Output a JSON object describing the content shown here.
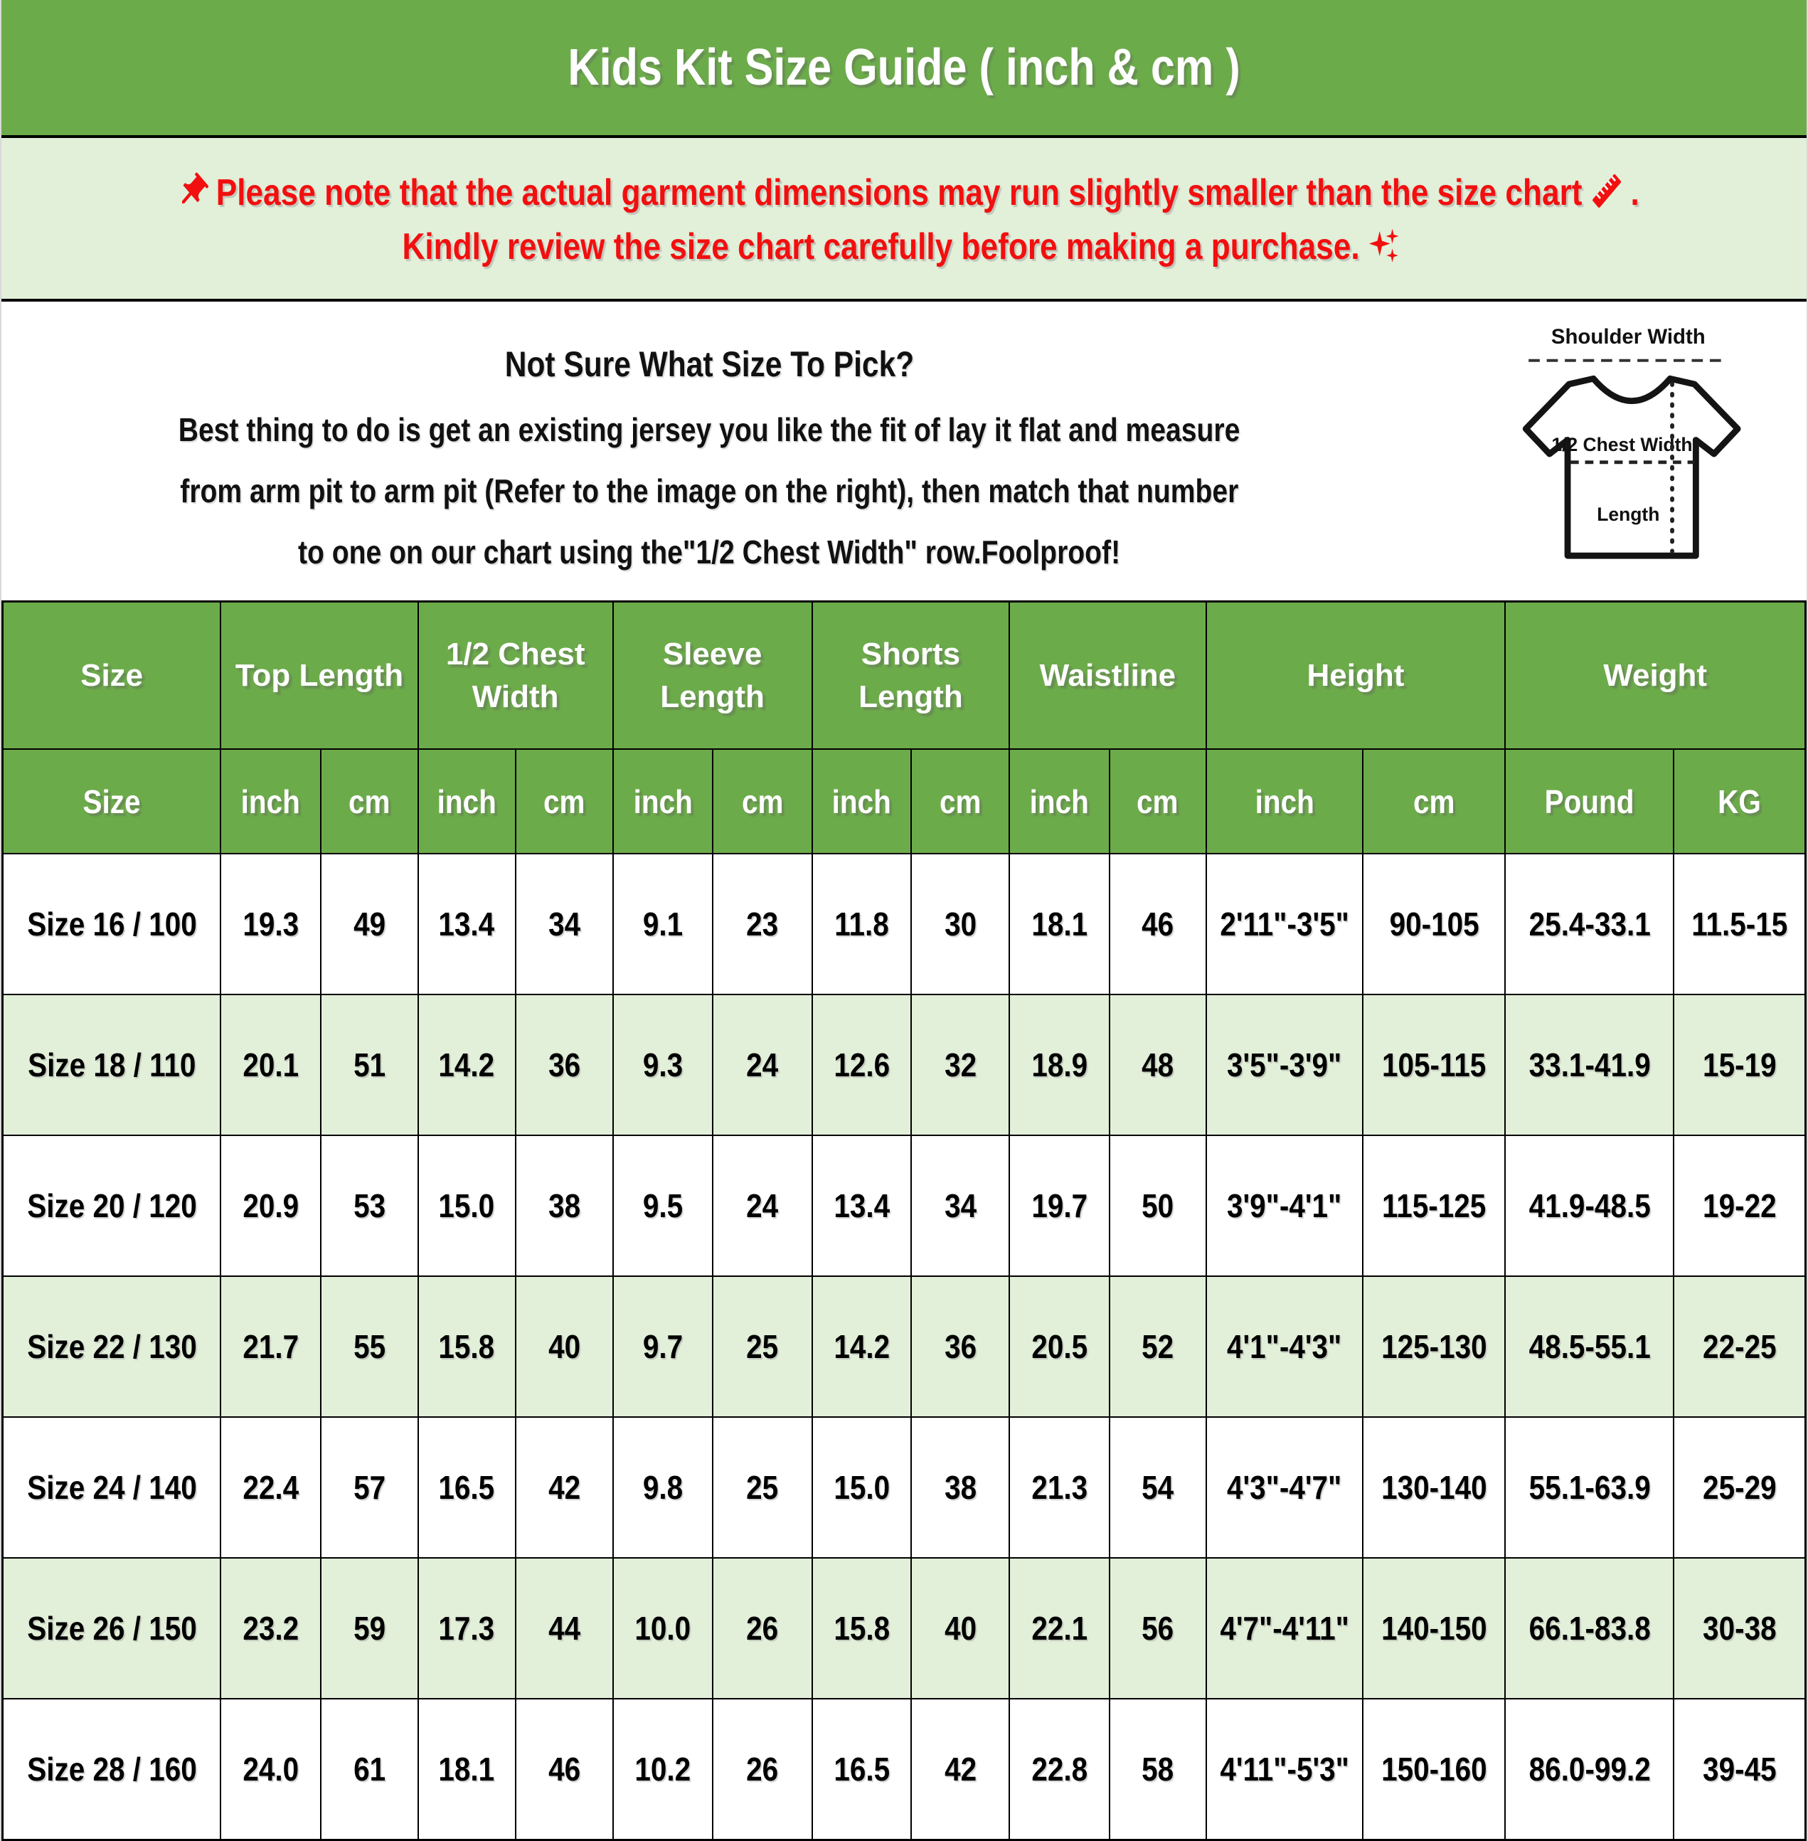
{
  "header": {
    "title": "Kids Kit Size Guide ( inch & cm )",
    "bg_color": "#6cab4a",
    "text_color": "#ffffff"
  },
  "notice": {
    "bg_color": "#e2efd9",
    "text_color": "#f20f0f",
    "line1": "Please note that the actual garment dimensions may run slightly smaller than the size chart",
    "line1_period": ".",
    "line2": "Kindly review the size chart carefully before making a purchase.",
    "icons": [
      "pushpin-icon",
      "ruler-icon",
      "sparkles-icon"
    ]
  },
  "sizing_help": {
    "heading": "Not Sure What Size To Pick?",
    "line1": "Best thing to do is get an existing jersey you like the fit of lay it flat and measure",
    "line2": "from arm pit to arm pit (Refer to the image on the right), then match that number",
    "line3": "to one on our chart using the\"1/2 Chest Width\" row.Foolproof!"
  },
  "diagram": {
    "shoulder_label": "Shoulder Width",
    "chest_label": "1/2 Chest Width",
    "length_label": "Length"
  },
  "table": {
    "accent_color": "#6cab4a",
    "alt_row_color": "#e2efd9",
    "groups": [
      {
        "label": "Size",
        "span": 1
      },
      {
        "label": "Top Length",
        "span": 2
      },
      {
        "label": "1/2 Chest Width",
        "span": 2
      },
      {
        "label": "Sleeve Length",
        "span": 2
      },
      {
        "label": "Shorts Length",
        "span": 2
      },
      {
        "label": "Waistline",
        "span": 2
      },
      {
        "label": "Height",
        "span": 2
      },
      {
        "label": "Weight",
        "span": 2
      }
    ],
    "subheaders": [
      "Size",
      "inch",
      "cm",
      "inch",
      "cm",
      "inch",
      "cm",
      "inch",
      "cm",
      "inch",
      "cm",
      "inch",
      "cm",
      "Pound",
      "KG"
    ],
    "rows": [
      [
        "Size 16 / 100",
        "19.3",
        "49",
        "13.4",
        "34",
        "9.1",
        "23",
        "11.8",
        "30",
        "18.1",
        "46",
        "2'11\"-3'5\"",
        "90-105",
        "25.4-33.1",
        "11.5-15"
      ],
      [
        "Size 18 / 110",
        "20.1",
        "51",
        "14.2",
        "36",
        "9.3",
        "24",
        "12.6",
        "32",
        "18.9",
        "48",
        "3'5\"-3'9\"",
        "105-115",
        "33.1-41.9",
        "15-19"
      ],
      [
        "Size 20 / 120",
        "20.9",
        "53",
        "15.0",
        "38",
        "9.5",
        "24",
        "13.4",
        "34",
        "19.7",
        "50",
        "3'9\"-4'1\"",
        "115-125",
        "41.9-48.5",
        "19-22"
      ],
      [
        "Size 22 / 130",
        "21.7",
        "55",
        "15.8",
        "40",
        "9.7",
        "25",
        "14.2",
        "36",
        "20.5",
        "52",
        "4'1\"-4'3\"",
        "125-130",
        "48.5-55.1",
        "22-25"
      ],
      [
        "Size 24 / 140",
        "22.4",
        "57",
        "16.5",
        "42",
        "9.8",
        "25",
        "15.0",
        "38",
        "21.3",
        "54",
        "4'3\"-4'7\"",
        "130-140",
        "55.1-63.9",
        "25-29"
      ],
      [
        "Size 26 / 150",
        "23.2",
        "59",
        "17.3",
        "44",
        "10.0",
        "26",
        "15.8",
        "40",
        "22.1",
        "56",
        "4'7\"-4'11\"",
        "140-150",
        "66.1-83.8",
        "30-38"
      ],
      [
        "Size 28 / 160",
        "24.0",
        "61",
        "18.1",
        "46",
        "10.2",
        "26",
        "16.5",
        "42",
        "22.8",
        "58",
        "4'11\"-5'3\"",
        "150-160",
        "86.0-99.2",
        "39-45"
      ]
    ]
  }
}
